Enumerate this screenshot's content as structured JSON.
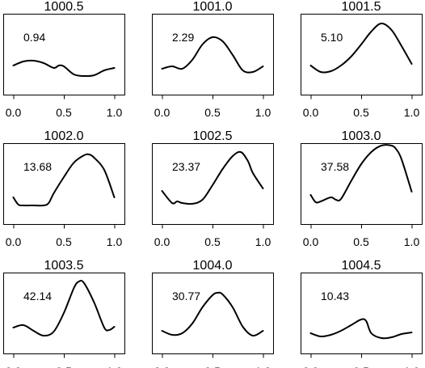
{
  "chart_data": {
    "type": "line",
    "layout": "3x3 grid of small multiples",
    "grid": false,
    "x_ticks": [
      "0.0",
      "0.5",
      "1.0"
    ],
    "xlim": [
      -0.1,
      1.1
    ],
    "ylim": [
      0,
      1
    ],
    "panels": [
      {
        "title": "1000.5",
        "annotation": "0.94",
        "x": [
          0.0,
          0.1,
          0.2,
          0.3,
          0.4,
          0.45,
          0.5,
          0.6,
          0.7,
          0.8,
          0.9,
          1.0
        ],
        "y": [
          0.36,
          0.41,
          0.42,
          0.39,
          0.33,
          0.36,
          0.35,
          0.25,
          0.23,
          0.24,
          0.3,
          0.33
        ]
      },
      {
        "title": "1001.0",
        "annotation": "2.29",
        "x": [
          0.0,
          0.1,
          0.2,
          0.3,
          0.4,
          0.5,
          0.6,
          0.7,
          0.8,
          0.9,
          1.0
        ],
        "y": [
          0.32,
          0.35,
          0.32,
          0.43,
          0.62,
          0.71,
          0.66,
          0.49,
          0.3,
          0.28,
          0.35
        ]
      },
      {
        "title": "1001.5",
        "annotation": "5.10",
        "x": [
          0.0,
          0.1,
          0.2,
          0.3,
          0.4,
          0.5,
          0.6,
          0.7,
          0.8,
          0.9,
          1.0
        ],
        "y": [
          0.36,
          0.28,
          0.29,
          0.36,
          0.47,
          0.62,
          0.78,
          0.88,
          0.8,
          0.6,
          0.38
        ]
      },
      {
        "title": "1002.0",
        "annotation": "13.68",
        "x": [
          0.0,
          0.05,
          0.1,
          0.2,
          0.3,
          0.35,
          0.4,
          0.5,
          0.6,
          0.7,
          0.75,
          0.8,
          0.9,
          1.0
        ],
        "y": [
          0.33,
          0.24,
          0.23,
          0.23,
          0.23,
          0.26,
          0.38,
          0.58,
          0.76,
          0.85,
          0.86,
          0.82,
          0.67,
          0.33
        ]
      },
      {
        "title": "1002.5",
        "annotation": "23.37",
        "x": [
          0.0,
          0.1,
          0.15,
          0.2,
          0.3,
          0.4,
          0.5,
          0.6,
          0.7,
          0.78,
          0.85,
          0.9,
          1.0
        ],
        "y": [
          0.41,
          0.26,
          0.28,
          0.26,
          0.25,
          0.3,
          0.48,
          0.68,
          0.84,
          0.89,
          0.78,
          0.63,
          0.44
        ]
      },
      {
        "title": "1003.0",
        "annotation": "37.58",
        "x": [
          0.0,
          0.05,
          0.1,
          0.2,
          0.25,
          0.3,
          0.4,
          0.5,
          0.6,
          0.7,
          0.8,
          0.85,
          0.9,
          1.0
        ],
        "y": [
          0.36,
          0.27,
          0.28,
          0.33,
          0.3,
          0.31,
          0.53,
          0.74,
          0.89,
          0.97,
          0.97,
          0.92,
          0.8,
          0.4
        ]
      },
      {
        "title": "1003.5",
        "annotation": "42.14",
        "x": [
          0.0,
          0.1,
          0.2,
          0.3,
          0.4,
          0.5,
          0.6,
          0.65,
          0.7,
          0.8,
          0.9,
          0.95,
          1.0
        ],
        "y": [
          0.32,
          0.35,
          0.28,
          0.22,
          0.27,
          0.5,
          0.81,
          0.89,
          0.87,
          0.63,
          0.32,
          0.29,
          0.33
        ]
      },
      {
        "title": "1004.0",
        "annotation": "30.77",
        "x": [
          0.0,
          0.1,
          0.2,
          0.3,
          0.4,
          0.5,
          0.55,
          0.6,
          0.7,
          0.8,
          0.9,
          1.0
        ],
        "y": [
          0.28,
          0.23,
          0.25,
          0.37,
          0.57,
          0.72,
          0.75,
          0.73,
          0.57,
          0.33,
          0.22,
          0.28
        ]
      },
      {
        "title": "1004.5",
        "annotation": "10.43",
        "x": [
          0.0,
          0.1,
          0.2,
          0.3,
          0.4,
          0.5,
          0.55,
          0.6,
          0.7,
          0.8,
          0.9,
          1.0
        ],
        "y": [
          0.25,
          0.21,
          0.23,
          0.28,
          0.35,
          0.42,
          0.4,
          0.25,
          0.19,
          0.2,
          0.24,
          0.26
        ]
      }
    ]
  }
}
